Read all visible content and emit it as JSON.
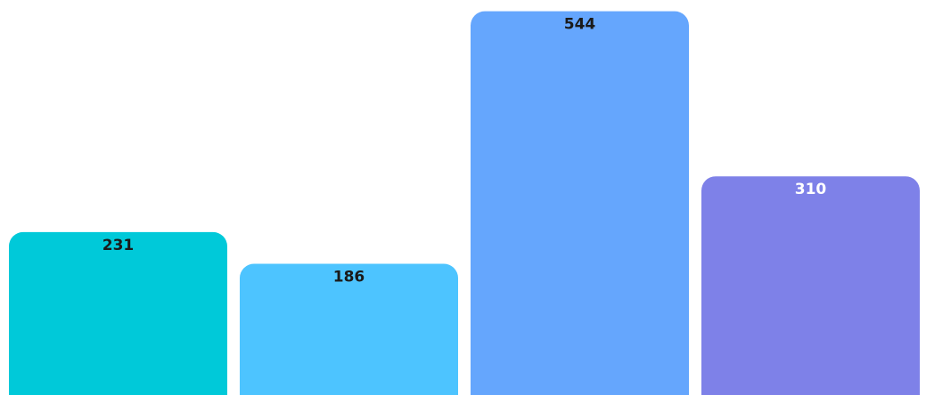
{
  "chart_data": {
    "type": "bar",
    "categories": [
      "",
      "",
      "",
      ""
    ],
    "values": [
      231,
      186,
      544,
      310
    ],
    "data_labels": [
      "231",
      "186",
      "544",
      "310"
    ],
    "colors": [
      "#00C9D9",
      "#4DC4FF",
      "#65A6FD",
      "#7E81E8"
    ],
    "label_colors": [
      "#1a1a1a",
      "#1a1a1a",
      "#1a1a1a",
      "#ffffff"
    ],
    "title": "",
    "xlabel": "",
    "ylabel": "",
    "ylim": [
      0,
      560
    ],
    "grid": false,
    "legend": "none"
  }
}
